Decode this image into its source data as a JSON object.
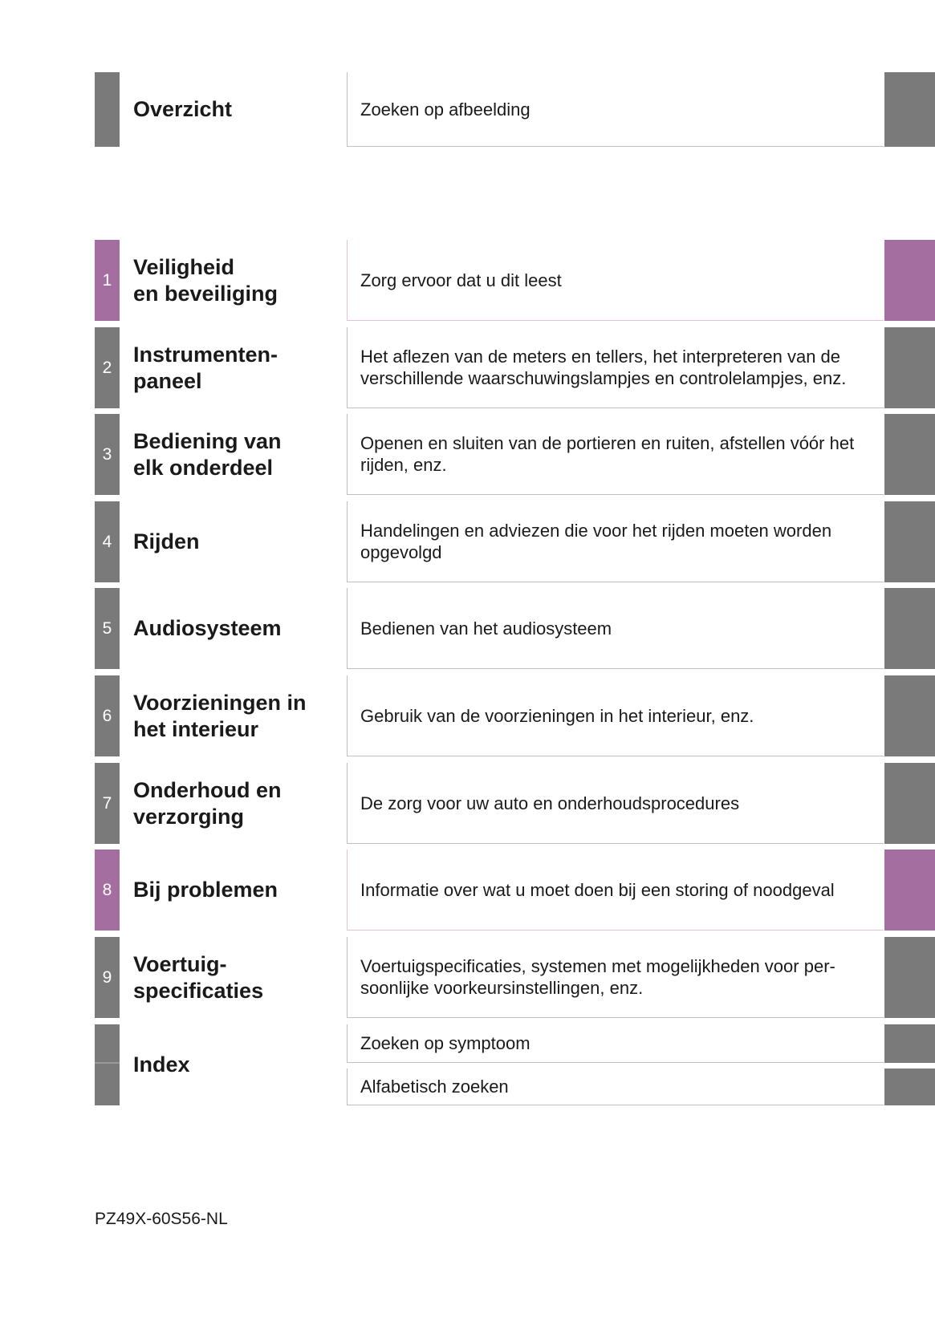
{
  "overview": {
    "title": "Overzicht",
    "description": "Zoeken op afbeelding"
  },
  "colors": {
    "tab_gray": "#7a7a7a",
    "tab_highlight": "#a56ea0"
  },
  "sections": [
    {
      "number": "1",
      "title": "Veiligheid\nen beveiliging",
      "description": "Zorg ervoor dat u dit leest",
      "highlight": true
    },
    {
      "number": "2",
      "title": "Instrumenten-\npaneel",
      "description": "Het aflezen van de meters en tellers, het interpreteren van de verschillende waarschuwingslampjes en controlelampjes, enz.",
      "highlight": false
    },
    {
      "number": "3",
      "title": "Bediening van\nelk onderdeel",
      "description": "Openen en sluiten van de portieren en ruiten, afstellen vóór het rijden, enz.",
      "highlight": false
    },
    {
      "number": "4",
      "title": "Rijden",
      "description": "Handelingen en adviezen die voor het rijden moeten worden opgevolgd",
      "highlight": false
    },
    {
      "number": "5",
      "title": "Audiosysteem",
      "description": "Bedienen van het audiosysteem",
      "highlight": false
    },
    {
      "number": "6",
      "title": "Voorzieningen in\nhet interieur",
      "description": "Gebruik van de voorzieningen in het interieur, enz.",
      "highlight": false
    },
    {
      "number": "7",
      "title": "Onderhoud en\nverzorging",
      "description": "De zorg voor uw auto en onderhoudsprocedures",
      "highlight": false
    },
    {
      "number": "8",
      "title": "Bij problemen",
      "description": "Informatie over wat u moet doen bij een storing of noodgeval",
      "highlight": true
    },
    {
      "number": "9",
      "title": "Voertuig-\nspecificaties",
      "description": "Voertuigspecificaties, systemen met mogelijkheden voor per-soonlijke voorkeursinstellingen, enz.",
      "highlight": false
    }
  ],
  "index": {
    "title": "Index",
    "items": [
      "Zoeken op symptoom",
      "Alfabetisch zoeken"
    ]
  },
  "footer": {
    "code": "PZ49X-60S56-NL"
  }
}
